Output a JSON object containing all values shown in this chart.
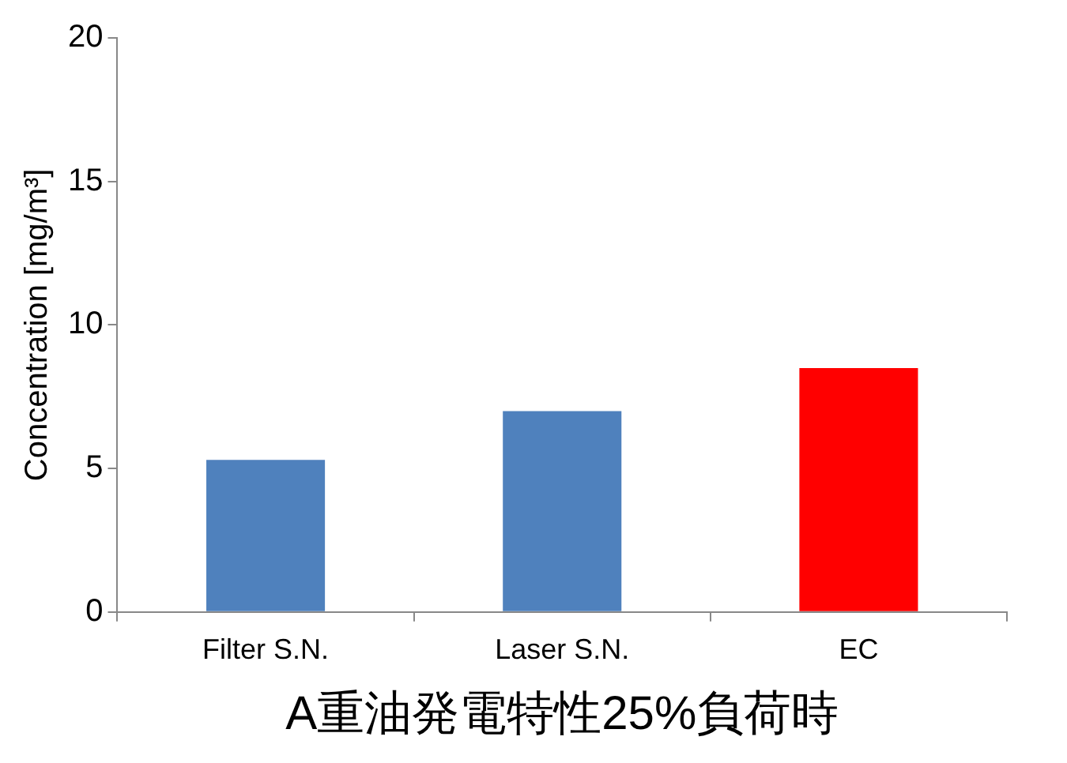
{
  "chart_data": {
    "type": "bar",
    "xlabel": "A重油発電特性25%負荷時",
    "ylabel": "Concentration [mg/m³]",
    "categories": [
      "Filter S.N.",
      "Laser S.N.",
      "EC"
    ],
    "values": [
      5.3,
      7.0,
      8.5
    ],
    "colors": [
      "#4f81bd",
      "#4f81bd",
      "#ff0000"
    ],
    "ylim": [
      0,
      20
    ],
    "yticks": [
      0,
      5,
      10,
      15,
      20
    ],
    "grid": false,
    "legend": false
  }
}
